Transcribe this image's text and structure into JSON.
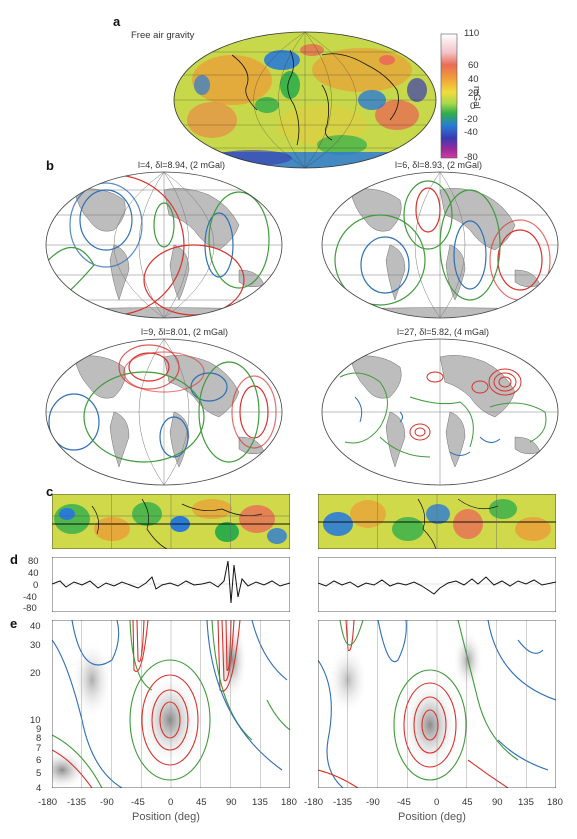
{
  "panels": {
    "a": {
      "letter": "a",
      "title": "Free air gravity"
    },
    "b": {
      "letter": "b"
    },
    "c": {
      "letter": "c"
    },
    "d": {
      "letter": "d"
    },
    "e": {
      "letter": "e"
    }
  },
  "colorbar": {
    "unit": "mGal",
    "ticks": [
      "110",
      "60",
      "40",
      "20",
      "0",
      "-20",
      "-40",
      "-80"
    ],
    "colors": [
      "#ffffff",
      "#f2c3c8",
      "#e96b55",
      "#f2a13a",
      "#f0dc3e",
      "#a8d84a",
      "#2fae4a",
      "#2a7bd6",
      "#3a3ab0",
      "#9a2a9a",
      "#d23aa4"
    ]
  },
  "maps": [
    {
      "label": "l=4, δl=8.94, (2 mGal)"
    },
    {
      "label": "l=6, δl=8.93, (2 mGal)"
    },
    {
      "label": "l=9, δl=8.01, (2 mGal)"
    },
    {
      "label": "l=27, δl=5.82, (4 mGal)"
    }
  ],
  "profile_axis": {
    "ticks": [
      "80",
      "40",
      "0",
      "-40",
      "-80"
    ]
  },
  "spectrogram_axis": {
    "ticks": [
      "40",
      "30",
      "20",
      "10",
      "9",
      "8",
      "7",
      "6",
      "5",
      "4"
    ]
  },
  "x_axis": {
    "ticks": [
      "-180",
      "-135",
      "-90",
      "-45",
      "0",
      "45",
      "90",
      "135",
      "180"
    ],
    "label": "Position (deg)"
  },
  "colors": {
    "red": "#d9322c",
    "blue": "#2e6fb5",
    "green": "#3f9a3a",
    "land": "#bdbdbd",
    "grid": "#7a7a7a"
  }
}
